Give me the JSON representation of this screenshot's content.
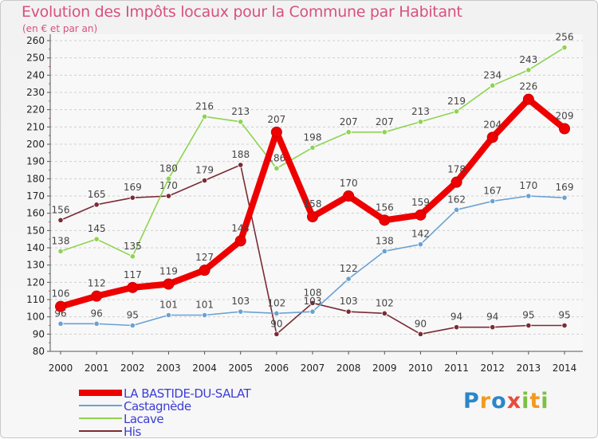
{
  "chart_data": {
    "type": "line",
    "title": "Evolution des Impôts locaux pour la Commune par Habitant",
    "subtitle": "(en € et par an)",
    "x": [
      "2000",
      "2001",
      "2002",
      "2003",
      "2004",
      "2005",
      "2006",
      "2007",
      "2008",
      "2009",
      "2010",
      "2011",
      "2012",
      "2013",
      "2014"
    ],
    "yticks": [
      80,
      90,
      100,
      110,
      120,
      130,
      140,
      150,
      160,
      170,
      180,
      190,
      200,
      210,
      220,
      230,
      240,
      250,
      260
    ],
    "ylim": [
      80,
      260
    ],
    "grid": "horizontal dashed",
    "legend_position": "bottom-left",
    "series": [
      {
        "name": "His",
        "color": "#7a2b34",
        "values": [
          156,
          165,
          169,
          170,
          179,
          188,
          90,
          108,
          103,
          102,
          90,
          94,
          94,
          95,
          95
        ]
      },
      {
        "name": "Castagnède",
        "color": "#6aa1d3",
        "values": [
          96,
          96,
          95,
          101,
          101,
          103,
          102,
          103,
          122,
          138,
          142,
          162,
          167,
          170,
          169
        ]
      },
      {
        "name": "Lacave",
        "color": "#8ed44f",
        "values": [
          138,
          145,
          135,
          180,
          216,
          213,
          186,
          198,
          207,
          207,
          213,
          219,
          234,
          243,
          256
        ]
      },
      {
        "name": "LA BASTIDE-DU-SALAT",
        "color": "#ee0000",
        "values": [
          106,
          112,
          117,
          119,
          127,
          144,
          207,
          158,
          170,
          156,
          159,
          178,
          204,
          226,
          209
        ]
      }
    ]
  },
  "legend": {
    "items": [
      {
        "label": "LA BASTIDE-DU-SALAT",
        "color": "#ee0000"
      },
      {
        "label": "Castagnède",
        "color": "#6aa1d3"
      },
      {
        "label": "Lacave",
        "color": "#8ed44f"
      },
      {
        "label": "His",
        "color": "#7a2b34"
      }
    ]
  },
  "logo": {
    "letters": [
      "P",
      "r",
      "o",
      "x",
      "i",
      "t",
      "i"
    ],
    "colors": [
      "#2b86c8",
      "#f39a1d",
      "#2b86c8",
      "#e84b3c",
      "#7cc043",
      "#f39a1d",
      "#7cc043"
    ]
  }
}
